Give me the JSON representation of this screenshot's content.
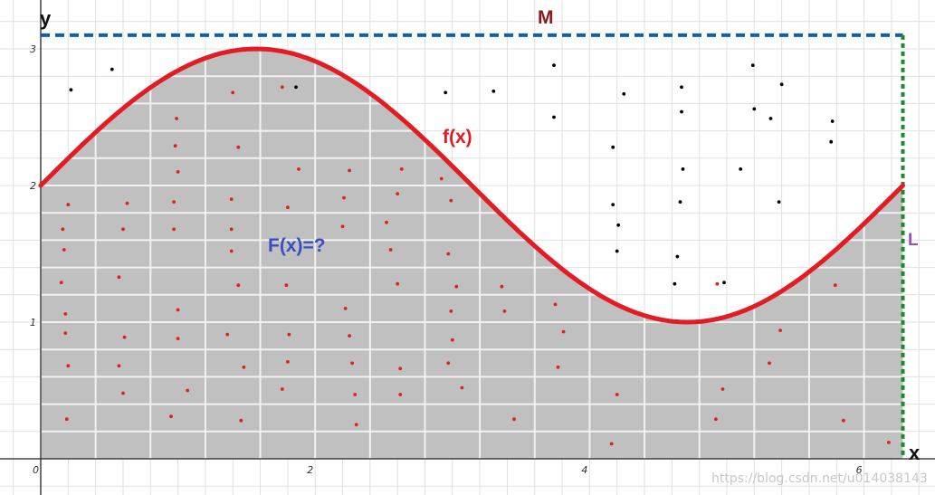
{
  "chart_data": {
    "type": "area",
    "function_label": "f(x)",
    "integral_label": "F(x)=?",
    "upper_bound_label": "M",
    "length_label": "L",
    "xlabel": "x",
    "ylabel": "y",
    "xlim": [
      0,
      6.5
    ],
    "ylim": [
      -0.25,
      3.3
    ],
    "x_ticks": [
      "0",
      "2",
      "4",
      "6"
    ],
    "y_ticks": [
      "1",
      "2",
      "3"
    ],
    "M": 3.1,
    "L": 6.283,
    "curve": {
      "formula": "2 + sin(x)",
      "x_min": 0,
      "x_max": 6.283
    },
    "points_inside": [
      [
        0.19,
        0.29
      ],
      [
        0.2,
        0.68
      ],
      [
        0.18,
        0.92
      ],
      [
        0.18,
        1.06
      ],
      [
        0.15,
        1.29
      ],
      [
        0.17,
        1.53
      ],
      [
        0.16,
        1.68
      ],
      [
        0.2,
        1.86
      ],
      [
        0.6,
        0.48
      ],
      [
        0.57,
        0.68
      ],
      [
        0.61,
        0.89
      ],
      [
        0.57,
        1.33
      ],
      [
        0.6,
        1.68
      ],
      [
        0.63,
        1.87
      ],
      [
        0.95,
        0.31
      ],
      [
        1.07,
        0.5
      ],
      [
        1.0,
        0.88
      ],
      [
        1.0,
        1.09
      ],
      [
        0.97,
        1.68
      ],
      [
        0.97,
        1.88
      ],
      [
        1.0,
        2.1
      ],
      [
        0.98,
        2.29
      ],
      [
        0.99,
        2.49
      ],
      [
        1.46,
        0.28
      ],
      [
        1.48,
        0.67
      ],
      [
        1.36,
        0.91
      ],
      [
        1.44,
        1.27
      ],
      [
        1.39,
        1.52
      ],
      [
        1.39,
        1.68
      ],
      [
        1.39,
        1.9
      ],
      [
        1.44,
        2.28
      ],
      [
        1.4,
        2.68
      ],
      [
        1.76,
        0.51
      ],
      [
        1.8,
        0.71
      ],
      [
        1.81,
        0.91
      ],
      [
        1.79,
        1.27
      ],
      [
        1.8,
        1.84
      ],
      [
        1.88,
        2.12
      ],
      [
        1.76,
        2.72
      ],
      [
        2.3,
        0.25
      ],
      [
        2.29,
        0.47
      ],
      [
        2.27,
        0.7
      ],
      [
        2.25,
        0.9
      ],
      [
        2.22,
        1.1
      ],
      [
        2.2,
        1.7
      ],
      [
        2.21,
        1.91
      ],
      [
        2.25,
        2.11
      ],
      [
        2.62,
        0.47
      ],
      [
        2.62,
        0.66
      ],
      [
        2.55,
        1.53
      ],
      [
        2.52,
        1.73
      ],
      [
        2.6,
        1.94
      ],
      [
        2.63,
        2.12
      ],
      [
        2.6,
        1.28
      ],
      [
        2.97,
        0.7
      ],
      [
        3.0,
        0.87
      ],
      [
        2.99,
        1.08
      ],
      [
        3.03,
        1.26
      ],
      [
        2.97,
        1.5
      ],
      [
        2.99,
        1.89
      ],
      [
        2.92,
        2.05
      ],
      [
        3.07,
        0.52
      ],
      [
        3.45,
        0.29
      ],
      [
        3.38,
        1.08
      ],
      [
        3.36,
        1.26
      ],
      [
        3.77,
        0.67
      ],
      [
        3.81,
        0.93
      ],
      [
        3.75,
        1.13
      ],
      [
        4.16,
        0.11
      ],
      [
        4.2,
        0.47
      ],
      [
        4.97,
        0.51
      ],
      [
        4.92,
        0.29
      ],
      [
        4.93,
        1.28
      ],
      [
        5.31,
        0.7
      ],
      [
        5.39,
        0.94
      ],
      [
        5.79,
        1.27
      ],
      [
        5.85,
        0.28
      ],
      [
        6.18,
        0.12
      ]
    ],
    "points_outside": [
      [
        0.22,
        2.7
      ],
      [
        0.52,
        2.85
      ],
      [
        1.86,
        2.72
      ],
      [
        2.95,
        2.68
      ],
      [
        3.3,
        2.69
      ],
      [
        3.74,
        2.88
      ],
      [
        3.74,
        2.5
      ],
      [
        4.17,
        2.28
      ],
      [
        4.25,
        2.67
      ],
      [
        4.17,
        1.86
      ],
      [
        4.21,
        1.71
      ],
      [
        4.2,
        1.52
      ],
      [
        4.62,
        1.28
      ],
      [
        4.64,
        1.48
      ],
      [
        4.66,
        1.88
      ],
      [
        4.67,
        2.54
      ],
      [
        4.67,
        2.72
      ],
      [
        4.68,
        2.12
      ],
      [
        4.98,
        1.29
      ],
      [
        5.1,
        2.12
      ],
      [
        5.2,
        2.56
      ],
      [
        5.19,
        2.88
      ],
      [
        5.32,
        2.49
      ],
      [
        5.38,
        1.88
      ],
      [
        5.4,
        2.74
      ],
      [
        5.76,
        2.32
      ],
      [
        5.77,
        2.47
      ]
    ]
  },
  "watermark": "https://blog.csdn.net/u014038143",
  "colors": {
    "curve": "#e31b23",
    "fill": "#c0c0c0",
    "grid_in_fill": "#f2f2f2",
    "grid": "#e0e0e0",
    "upper_bound": "#1060b0",
    "right_bound": "#1a8a2a",
    "points_inside": "#e02020",
    "points_outside": "#000000",
    "M_label": "#8b1a1a",
    "L_label": "#9b4fc0",
    "integral_label": "#3a4ec2",
    "function_label": "#e31b23"
  }
}
